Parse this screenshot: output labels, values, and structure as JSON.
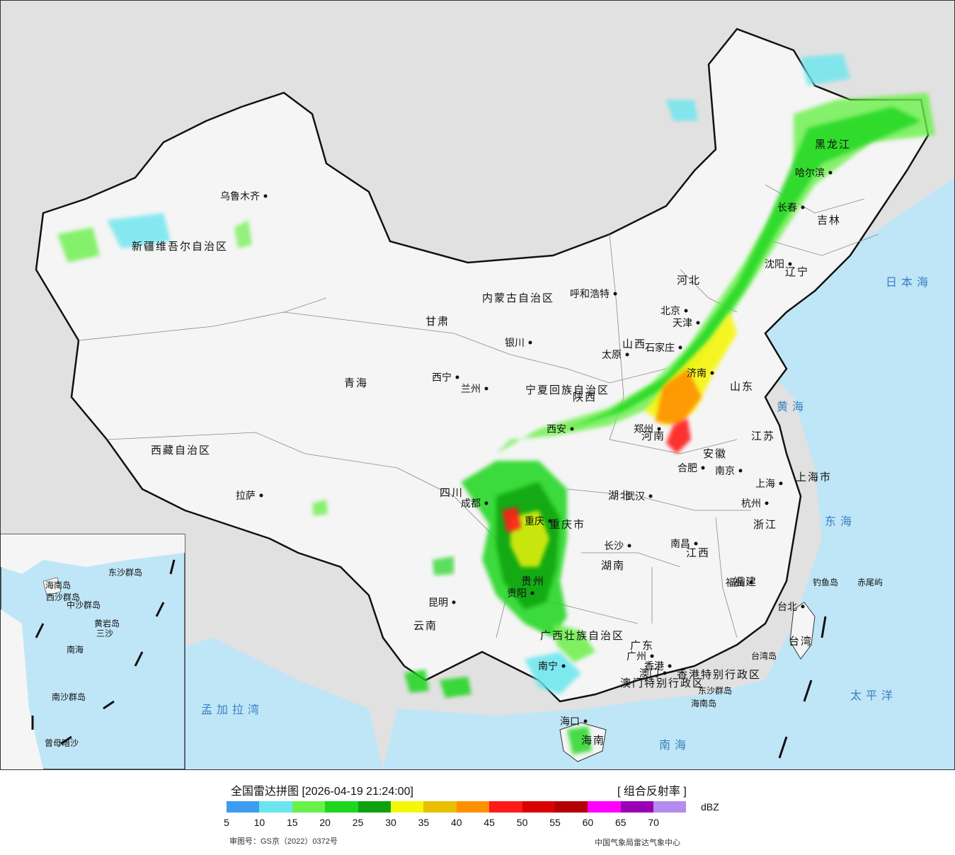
{
  "cities": [
    {
      "name": "乌鲁木齐"
    },
    {
      "name": "拉萨"
    },
    {
      "name": "西宁"
    },
    {
      "name": "兰州"
    },
    {
      "name": "银川"
    },
    {
      "name": "呼和浩特"
    },
    {
      "name": "北京"
    },
    {
      "name": "天津"
    },
    {
      "name": "石家庄"
    },
    {
      "name": "太原"
    },
    {
      "name": "济南"
    },
    {
      "name": "郑州"
    },
    {
      "name": "西安"
    },
    {
      "name": "成都"
    },
    {
      "name": "重庆"
    },
    {
      "name": "贵阳"
    },
    {
      "name": "昆明"
    },
    {
      "name": "南宁"
    },
    {
      "name": "广州"
    },
    {
      "name": "澳门"
    },
    {
      "name": "香港"
    },
    {
      "name": "海口"
    },
    {
      "name": "长沙"
    },
    {
      "name": "武汉"
    },
    {
      "name": "南昌"
    },
    {
      "name": "福州"
    },
    {
      "name": "台北"
    },
    {
      "name": "杭州"
    },
    {
      "name": "上海"
    },
    {
      "name": "南京"
    },
    {
      "name": "合肥"
    },
    {
      "name": "沈阳"
    },
    {
      "name": "长春"
    },
    {
      "name": "哈尔滨"
    }
  ],
  "regions": [
    "新疆维吾尔自治区",
    "西藏自治区",
    "青海",
    "甘肃",
    "内蒙古自治区",
    "宁夏回族自治区",
    "陕西",
    "山西",
    "河北",
    "山东",
    "河南",
    "四川",
    "重庆市",
    "贵州",
    "云南",
    "广西壮族自治区",
    "广东",
    "海南",
    "湖南",
    "湖北",
    "江西",
    "安徽",
    "江苏",
    "浙江",
    "福建",
    "台湾",
    "上海市",
    "辽宁",
    "吉林",
    "黑龙江",
    "香港特别行政区",
    "澳门特别行政区"
  ],
  "seas": [
    "日本海",
    "黄海",
    "东海",
    "太平洋",
    "南海",
    "孟加拉湾"
  ],
  "islands": [
    "钓鱼岛",
    "赤尾屿",
    "台湾岛",
    "东沙群岛",
    "海南岛"
  ],
  "inset_labels": [
    "南海",
    "东沙群岛",
    "西沙群岛",
    "中沙群岛",
    "黄岩岛",
    "南沙群岛",
    "曾母暗沙",
    "海南岛",
    "三沙"
  ],
  "legend": {
    "title": "全国雷达拼图 [2026-04-19 21:24:00]",
    "product": "[ 组合反射率 ]",
    "unit": "dBZ",
    "levels": [
      5,
      10,
      15,
      20,
      25,
      30,
      35,
      40,
      45,
      50,
      55,
      60,
      65,
      70
    ],
    "colors": [
      "#3d9cf0",
      "#6be6ef",
      "#6af04a",
      "#1ed61e",
      "#0fa20f",
      "#f6f60a",
      "#e8c000",
      "#ff9100",
      "#ff1a1a",
      "#d90000",
      "#b40000",
      "#ff00ff",
      "#9a00b4",
      "#b48cef"
    ],
    "approval_number": "审图号：GS京（2022）0372号",
    "agency": "中国气象局雷达气象中心"
  }
}
